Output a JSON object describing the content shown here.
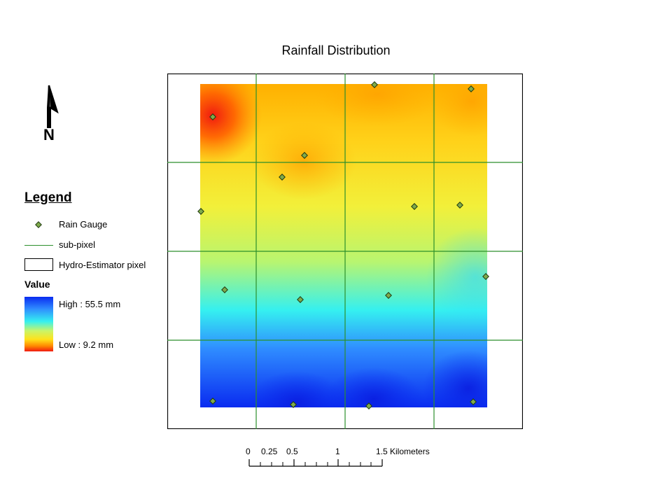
{
  "map": {
    "title": "Rainfall Distribution"
  },
  "north_arrow": {
    "label": "N",
    "icon": "north-arrow-icon"
  },
  "legend": {
    "title": "Legend",
    "items": [
      {
        "label": "Rain Gauge",
        "icon": "rain-gauge-icon",
        "color": "#7faa4c"
      },
      {
        "label": "sub-pixel",
        "icon": "sub-pixel-line-icon",
        "color": "#2c8f2c"
      },
      {
        "label": "Hydro-Estimator pixel",
        "icon": "pixel-box-icon",
        "color": "#000000"
      }
    ],
    "value": {
      "title": "Value",
      "high_label": "High : 55.5 mm",
      "low_label": "Low : 9.2 mm",
      "high": 55.5,
      "low": 9.2,
      "unit": "mm",
      "colors": [
        "#0a2bf0",
        "#2f8cff",
        "#35f0f0",
        "#c8f56a",
        "#ffe21a",
        "#ff8a00",
        "#f01a10"
      ]
    }
  },
  "scale_bar": {
    "labels": [
      "0",
      "0.25",
      "0.5",
      "1",
      "1.5 Kilometers"
    ],
    "unit": "Kilometers",
    "ticks_km": [
      0,
      0.25,
      0.5,
      1,
      1.5
    ]
  },
  "grid": {
    "hydro_estimator_pixels": 1,
    "sub_pixel_columns": 4,
    "sub_pixel_rows": 4
  },
  "gauges_count": 16
}
